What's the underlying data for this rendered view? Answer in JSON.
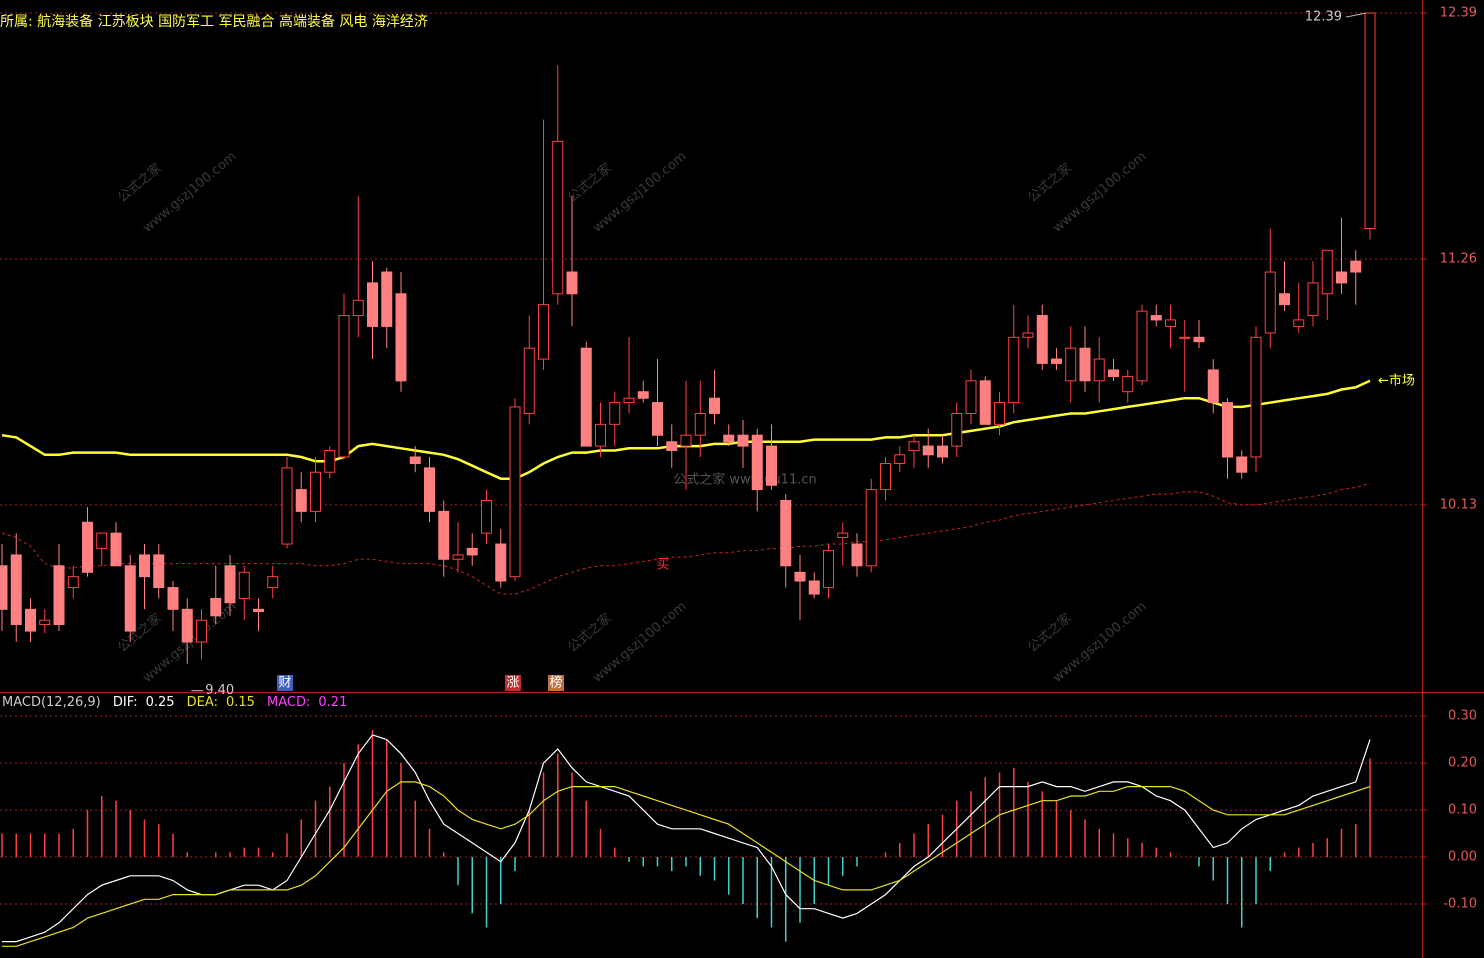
{
  "chart_data": [
    {
      "type": "candlestick",
      "header": "所属: 航海装备 江苏板块 国防军工 军民融合 高端装备 风电 海洋经济",
      "ylim": [
        9.27,
        12.45
      ],
      "yticks": [
        10.13,
        11.26,
        12.39
      ],
      "up_color": "#ff4040",
      "down_color": "#ff8080",
      "grid": true,
      "open": [
        9.85,
        9.9,
        9.65,
        9.58,
        9.85,
        9.75,
        10.05,
        9.93,
        10.0,
        9.85,
        9.9,
        9.9,
        9.75,
        9.65,
        9.5,
        9.7,
        9.85,
        9.7,
        9.65,
        9.75,
        9.95,
        10.2,
        10.1,
        10.28,
        10.35,
        11.0,
        11.15,
        11.2,
        11.1,
        10.35,
        10.3,
        10.1,
        9.88,
        9.93,
        10.0,
        9.95,
        9.8,
        10.55,
        10.8,
        11.1,
        11.2,
        10.85,
        10.4,
        10.5,
        10.6,
        10.65,
        10.6,
        10.42,
        10.4,
        10.45,
        10.62,
        10.45,
        10.45,
        10.45,
        10.4,
        10.15,
        9.82,
        9.78,
        9.75,
        9.98,
        9.95,
        9.85,
        10.2,
        10.32,
        10.38,
        10.4,
        10.4,
        10.4,
        10.55,
        10.7,
        10.5,
        10.6,
        10.9,
        11.0,
        10.8,
        10.7,
        10.85,
        10.7,
        10.75,
        10.65,
        10.7,
        11.0,
        10.95,
        10.9,
        10.9,
        10.75,
        10.6,
        10.35,
        10.35,
        10.92,
        11.1,
        10.95,
        11.0,
        11.1,
        11.2,
        11.25,
        11.4
      ],
      "high": [
        9.95,
        10.0,
        9.7,
        9.65,
        9.95,
        9.85,
        10.12,
        10.0,
        10.05,
        9.9,
        9.95,
        9.95,
        9.78,
        9.7,
        9.65,
        9.85,
        9.9,
        9.85,
        9.7,
        9.85,
        10.35,
        10.28,
        10.35,
        10.4,
        11.1,
        11.55,
        11.25,
        11.22,
        11.2,
        10.4,
        10.35,
        10.15,
        10.05,
        10.0,
        10.2,
        10.02,
        10.62,
        11.0,
        11.9,
        12.15,
        11.55,
        10.88,
        10.6,
        10.65,
        10.9,
        10.7,
        10.8,
        10.5,
        10.7,
        10.7,
        10.75,
        10.5,
        10.52,
        10.48,
        10.5,
        10.18,
        9.9,
        9.82,
        9.95,
        10.05,
        10.0,
        10.25,
        10.35,
        10.4,
        10.45,
        10.48,
        10.45,
        10.6,
        10.75,
        10.72,
        10.65,
        11.05,
        11.0,
        11.05,
        10.85,
        10.95,
        10.95,
        10.9,
        10.8,
        10.75,
        11.05,
        11.05,
        11.05,
        10.98,
        10.98,
        10.8,
        10.62,
        10.38,
        10.95,
        11.4,
        11.25,
        11.15,
        11.25,
        11.3,
        11.45,
        11.3,
        12.39
      ],
      "low": [
        9.55,
        9.5,
        9.5,
        9.54,
        9.55,
        9.7,
        9.8,
        9.85,
        9.85,
        9.5,
        9.65,
        9.7,
        9.55,
        9.4,
        9.42,
        9.58,
        9.62,
        9.6,
        9.55,
        9.7,
        9.93,
        10.05,
        10.05,
        10.25,
        10.34,
        10.9,
        10.8,
        10.85,
        10.65,
        10.28,
        10.05,
        9.8,
        9.82,
        9.85,
        9.95,
        9.75,
        9.78,
        10.5,
        10.75,
        11.05,
        10.95,
        10.4,
        10.35,
        10.4,
        10.55,
        10.6,
        10.4,
        10.3,
        10.2,
        10.35,
        10.5,
        10.4,
        10.3,
        10.1,
        10.2,
        9.75,
        9.6,
        9.7,
        9.7,
        9.85,
        9.8,
        9.82,
        10.15,
        10.28,
        10.3,
        10.3,
        10.32,
        10.35,
        10.5,
        10.5,
        10.45,
        10.55,
        10.85,
        10.75,
        10.75,
        10.6,
        10.65,
        10.6,
        10.7,
        10.6,
        10.68,
        10.95,
        10.85,
        10.65,
        10.85,
        10.55,
        10.25,
        10.25,
        10.28,
        10.85,
        11.02,
        10.92,
        10.95,
        10.98,
        11.1,
        11.05,
        11.35
      ],
      "close": [
        9.65,
        9.58,
        9.55,
        9.6,
        9.58,
        9.8,
        9.82,
        10.0,
        9.85,
        9.55,
        9.8,
        9.75,
        9.65,
        9.5,
        9.6,
        9.62,
        9.68,
        9.82,
        9.64,
        9.8,
        10.3,
        10.1,
        10.28,
        10.38,
        11.0,
        11.07,
        10.95,
        10.95,
        10.7,
        10.32,
        10.1,
        9.88,
        9.9,
        9.9,
        10.15,
        9.78,
        10.58,
        10.85,
        11.05,
        11.8,
        11.1,
        10.4,
        10.5,
        10.6,
        10.62,
        10.62,
        10.45,
        10.38,
        10.45,
        10.55,
        10.55,
        10.42,
        10.4,
        10.2,
        10.22,
        9.85,
        9.78,
        9.72,
        9.92,
        10.0,
        9.85,
        10.2,
        10.32,
        10.36,
        10.42,
        10.36,
        10.35,
        10.55,
        10.7,
        10.5,
        10.6,
        10.9,
        10.92,
        10.78,
        10.78,
        10.85,
        10.7,
        10.8,
        10.72,
        10.72,
        11.02,
        10.98,
        10.98,
        10.9,
        10.88,
        10.6,
        10.35,
        10.28,
        10.9,
        11.2,
        11.05,
        10.98,
        11.15,
        11.3,
        11.15,
        11.2,
        12.39
      ],
      "series": [
        {
          "color": "#ffff33",
          "values": [
            10.45,
            10.44,
            10.4,
            10.36,
            10.36,
            10.37,
            10.37,
            10.37,
            10.37,
            10.36,
            10.36,
            10.36,
            10.36,
            10.36,
            10.36,
            10.36,
            10.36,
            10.36,
            10.36,
            10.36,
            10.36,
            10.35,
            10.33,
            10.33,
            10.35,
            10.4,
            10.41,
            10.4,
            10.39,
            10.38,
            10.37,
            10.36,
            10.34,
            10.31,
            10.28,
            10.25,
            10.25,
            10.28,
            10.32,
            10.35,
            10.37,
            10.37,
            10.38,
            10.38,
            10.39,
            10.39,
            10.39,
            10.4,
            10.4,
            10.4,
            10.41,
            10.41,
            10.42,
            10.42,
            10.42,
            10.42,
            10.42,
            10.43,
            10.43,
            10.43,
            10.43,
            10.43,
            10.44,
            10.44,
            10.45,
            10.45,
            10.45,
            10.46,
            10.47,
            10.48,
            10.49,
            10.51,
            10.52,
            10.53,
            10.54,
            10.55,
            10.55,
            10.56,
            10.57,
            10.58,
            10.59,
            10.6,
            10.61,
            10.62,
            10.62,
            10.6,
            10.58,
            10.58,
            10.59,
            10.6,
            10.61,
            10.62,
            10.63,
            10.64,
            10.66,
            10.67,
            10.7
          ]
        },
        {
          "color": "#cc2020",
          "dashed": true,
          "values": [
            10.0,
            9.98,
            9.94,
            9.86,
            9.84,
            9.84,
            9.85,
            9.85,
            9.86,
            9.86,
            9.86,
            9.86,
            9.86,
            9.86,
            9.86,
            9.86,
            9.86,
            9.86,
            9.86,
            9.86,
            9.86,
            9.86,
            9.85,
            9.85,
            9.86,
            9.88,
            9.88,
            9.87,
            9.86,
            9.86,
            9.86,
            9.85,
            9.83,
            9.8,
            9.76,
            9.72,
            9.72,
            9.74,
            9.77,
            9.8,
            9.82,
            9.84,
            9.85,
            9.85,
            9.86,
            9.87,
            9.88,
            9.89,
            9.89,
            9.9,
            9.91,
            9.91,
            9.92,
            9.92,
            9.93,
            9.93,
            9.94,
            9.94,
            9.95,
            9.95,
            9.96,
            9.96,
            9.97,
            9.98,
            9.99,
            10.0,
            10.01,
            10.02,
            10.03,
            10.05,
            10.06,
            10.08,
            10.09,
            10.1,
            10.11,
            10.12,
            10.13,
            10.14,
            10.15,
            10.16,
            10.17,
            10.18,
            10.18,
            10.19,
            10.19,
            10.17,
            10.14,
            10.13,
            10.13,
            10.14,
            10.15,
            10.16,
            10.17,
            10.18,
            10.2,
            10.21,
            10.23
          ]
        }
      ],
      "max_label": "12.39",
      "min_label": "9.40",
      "line_label": "←市场",
      "markers": [
        "财",
        "涨",
        "榜",
        "买"
      ],
      "watermarks": [
        "公式之家 www.uu11.cn",
        "公式之家",
        "www.gszj100.com"
      ]
    },
    {
      "type": "macd",
      "legend": "MACD(12,26,9)",
      "ylim": [
        -0.215,
        0.345
      ],
      "yticks": [
        {
          "value": -0.1,
          "label": "-0.10"
        },
        {
          "value": 0,
          "label": "0.00"
        },
        {
          "value": 0.1,
          "label": "0.10"
        },
        {
          "value": 0.2,
          "label": "0.20"
        },
        {
          "value": 0.3,
          "label": "0.30"
        }
      ],
      "bar_name": "MACD",
      "bar_up_color": "#ff4040",
      "bar_down_color": "#40d0d0",
      "name_color": "#ff40ff",
      "bars": [
        0.05,
        0.05,
        0.05,
        0.05,
        0.05,
        0.06,
        0.1,
        0.13,
        0.12,
        0.1,
        0.08,
        0.07,
        0.05,
        0.01,
        0.0,
        0.01,
        0.01,
        0.02,
        0.02,
        0.01,
        0.05,
        0.08,
        0.12,
        0.15,
        0.2,
        0.24,
        0.27,
        0.25,
        0.2,
        0.12,
        0.06,
        0.01,
        -0.06,
        -0.12,
        -0.15,
        -0.1,
        -0.03,
        0.1,
        0.18,
        0.22,
        0.18,
        0.12,
        0.06,
        0.02,
        -0.01,
        -0.02,
        -0.02,
        -0.03,
        -0.02,
        -0.04,
        -0.05,
        -0.08,
        -0.1,
        -0.13,
        -0.15,
        -0.18,
        -0.14,
        -0.1,
        -0.06,
        -0.04,
        -0.02,
        0.0,
        0.01,
        0.03,
        0.05,
        0.07,
        0.09,
        0.12,
        0.14,
        0.17,
        0.18,
        0.19,
        0.16,
        0.14,
        0.12,
        0.1,
        0.08,
        0.06,
        0.05,
        0.04,
        0.03,
        0.02,
        0.01,
        0.0,
        -0.02,
        -0.05,
        -0.1,
        -0.15,
        -0.1,
        -0.03,
        0.01,
        0.02,
        0.03,
        0.04,
        0.06,
        0.07,
        0.21
      ],
      "series": [
        {
          "name": "DIF",
          "color": "#ffffff",
          "values": [
            -0.18,
            -0.18,
            -0.17,
            -0.16,
            -0.14,
            -0.11,
            -0.08,
            -0.06,
            -0.05,
            -0.04,
            -0.04,
            -0.04,
            -0.05,
            -0.07,
            -0.08,
            -0.08,
            -0.07,
            -0.06,
            -0.06,
            -0.07,
            -0.05,
            0.0,
            0.05,
            0.1,
            0.16,
            0.22,
            0.26,
            0.25,
            0.22,
            0.18,
            0.12,
            0.07,
            0.05,
            0.03,
            0.01,
            -0.01,
            0.03,
            0.1,
            0.2,
            0.23,
            0.19,
            0.16,
            0.15,
            0.14,
            0.13,
            0.1,
            0.07,
            0.06,
            0.06,
            0.06,
            0.05,
            0.04,
            0.03,
            0.02,
            -0.02,
            -0.08,
            -0.11,
            -0.11,
            -0.12,
            -0.13,
            -0.12,
            -0.1,
            -0.08,
            -0.05,
            -0.02,
            0.0,
            0.03,
            0.06,
            0.09,
            0.12,
            0.15,
            0.15,
            0.15,
            0.16,
            0.15,
            0.15,
            0.14,
            0.15,
            0.16,
            0.16,
            0.15,
            0.13,
            0.12,
            0.1,
            0.06,
            0.02,
            0.03,
            0.06,
            0.08,
            0.09,
            0.1,
            0.11,
            0.13,
            0.14,
            0.15,
            0.16,
            0.25
          ]
        },
        {
          "name": "DEA",
          "color": "#e8e020",
          "values": [
            -0.19,
            -0.19,
            -0.18,
            -0.17,
            -0.16,
            -0.15,
            -0.13,
            -0.12,
            -0.11,
            -0.1,
            -0.09,
            -0.09,
            -0.08,
            -0.08,
            -0.08,
            -0.08,
            -0.07,
            -0.07,
            -0.07,
            -0.07,
            -0.07,
            -0.06,
            -0.04,
            -0.01,
            0.02,
            0.06,
            0.1,
            0.14,
            0.16,
            0.16,
            0.15,
            0.13,
            0.1,
            0.08,
            0.07,
            0.06,
            0.07,
            0.09,
            0.12,
            0.14,
            0.15,
            0.15,
            0.15,
            0.15,
            0.14,
            0.13,
            0.12,
            0.11,
            0.1,
            0.09,
            0.08,
            0.07,
            0.05,
            0.03,
            0.01,
            -0.01,
            -0.03,
            -0.05,
            -0.06,
            -0.07,
            -0.07,
            -0.07,
            -0.06,
            -0.05,
            -0.03,
            -0.01,
            0.01,
            0.03,
            0.05,
            0.07,
            0.09,
            0.1,
            0.11,
            0.12,
            0.12,
            0.13,
            0.13,
            0.14,
            0.14,
            0.15,
            0.15,
            0.15,
            0.15,
            0.14,
            0.12,
            0.1,
            0.09,
            0.09,
            0.09,
            0.09,
            0.09,
            0.1,
            0.11,
            0.12,
            0.13,
            0.14,
            0.15
          ]
        }
      ]
    }
  ]
}
